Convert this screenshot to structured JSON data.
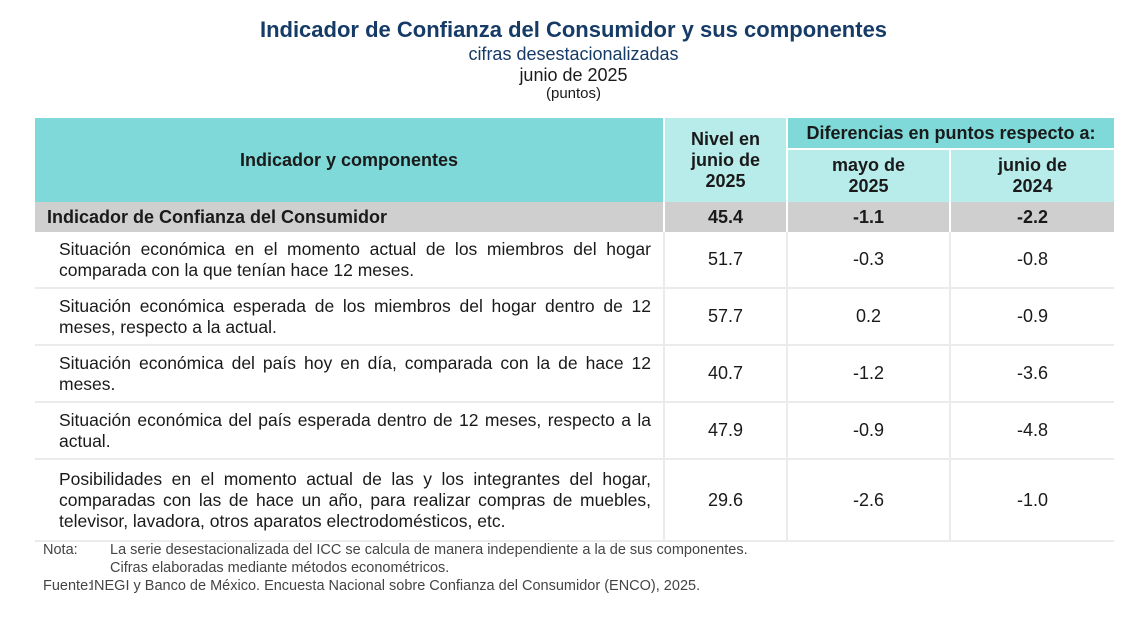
{
  "header": {
    "title": "Indicador de Confianza del Consumidor y sus componentes",
    "subtitle": "cifras desestacionalizadas",
    "period": "junio de 2025",
    "units": "(puntos)"
  },
  "table": {
    "col_indicator": "Indicador y componentes",
    "col_level": "Nivel en junio de 2025",
    "col_differences": "Diferencias en puntos respecto a:",
    "col_diff_1": "mayo de 2025",
    "col_diff_2": "junio de 2024",
    "main_row": {
      "name": "Indicador de Confianza del Consumidor",
      "level": "45.4",
      "diff_1": "-1.1",
      "diff_2": "-2.2"
    },
    "rows": [
      {
        "name": "Situación económica en el momento actual de los miembros del hogar comparada con la que tenían hace 12 meses.",
        "level": "51.7",
        "diff_1": "-0.3",
        "diff_2": "-0.8"
      },
      {
        "name": "Situación económica esperada de los miembros del hogar dentro de 12 meses, respecto a la actual.",
        "level": "57.7",
        "diff_1": "0.2",
        "diff_2": "-0.9"
      },
      {
        "name": "Situación económica del país hoy en día, comparada con la de hace 12 meses.",
        "level": "40.7",
        "diff_1": "-1.2",
        "diff_2": "-3.6"
      },
      {
        "name": "Situación económica del país esperada dentro de 12 meses, respecto a la actual.",
        "level": "47.9",
        "diff_1": "-0.9",
        "diff_2": "-4.8"
      },
      {
        "name": "Posibilidades en el momento actual de las y los integrantes del hogar, comparadas con las de hace un año, para realizar compras de muebles, televisor, lavadora, otros aparatos electrodomésticos, etc.",
        "level": "29.6",
        "diff_1": "-2.6",
        "diff_2": "-1.0"
      }
    ]
  },
  "notes": {
    "note_label": "Nota:",
    "note_line_1": "La serie desestacionalizada del ICC se calcula de manera independiente a la de sus componentes.",
    "note_line_2": "Cifras elaboradas mediante métodos econométricos.",
    "source_label": "Fuente:",
    "source_text": "INEGI y Banco de México. Encuesta Nacional sobre Confianza del Consumidor (ENCO), 2025."
  }
}
